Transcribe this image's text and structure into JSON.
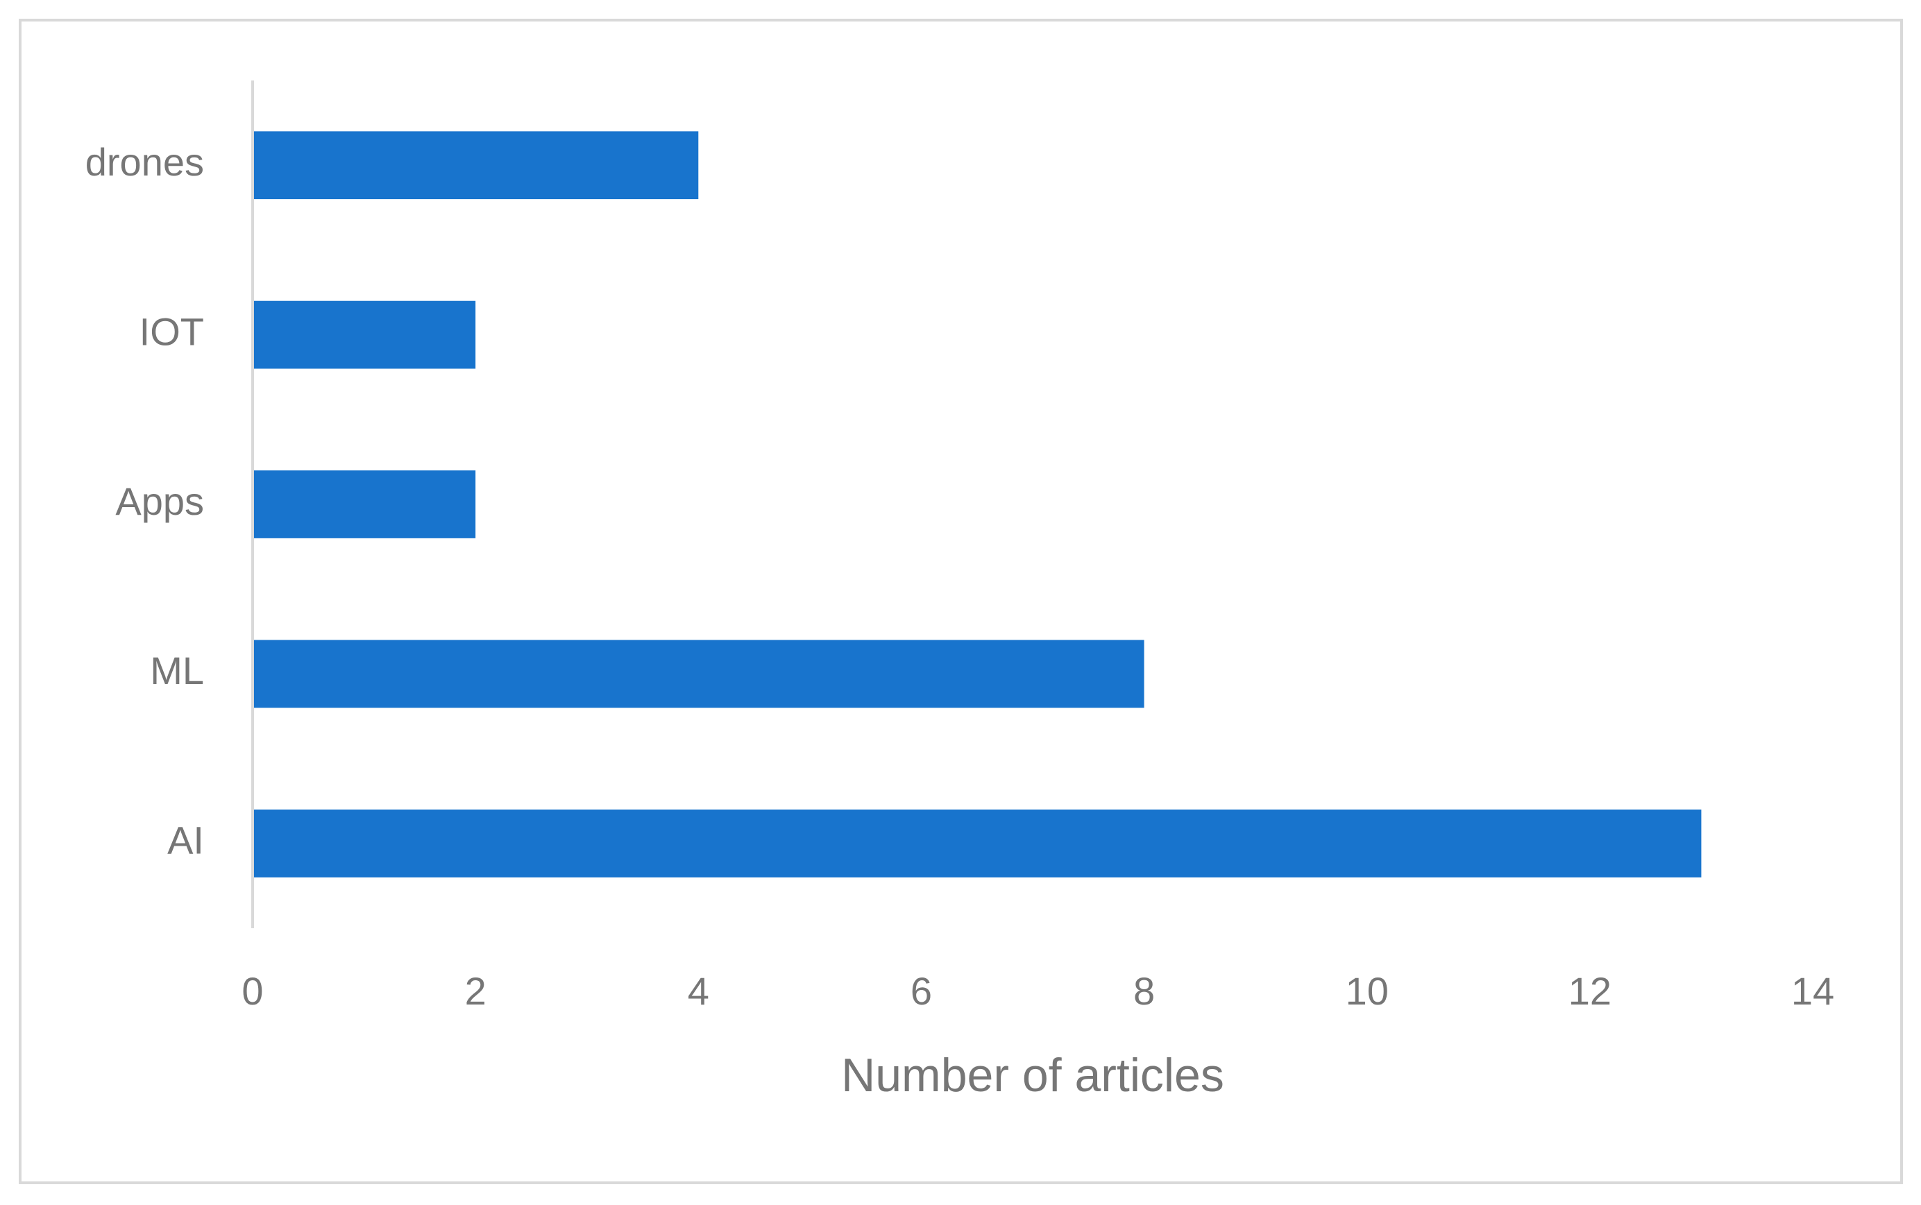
{
  "chart_data": {
    "type": "hbar",
    "categories": [
      "drones",
      "IOT",
      "Apps",
      "ML",
      "AI"
    ],
    "values": [
      4,
      2,
      2,
      8,
      13
    ],
    "color": "#1874cd",
    "x_label": "Number of articles",
    "xlim": [
      0,
      14
    ],
    "xticks": [
      0,
      2,
      4,
      6,
      8,
      10,
      12,
      14
    ],
    "grid": false
  }
}
